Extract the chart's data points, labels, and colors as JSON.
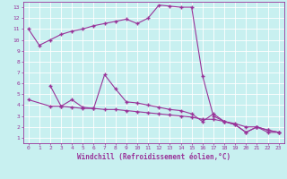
{
  "bg_color": "#c8f0f0",
  "line_color": "#993399",
  "grid_color": "#aadddd",
  "xlabel": "Windchill (Refroidissement éolien,°C)",
  "xlim": [
    -0.5,
    23.5
  ],
  "ylim": [
    0.5,
    13.5
  ],
  "xticks": [
    0,
    1,
    2,
    3,
    4,
    5,
    6,
    7,
    8,
    9,
    10,
    11,
    12,
    13,
    14,
    15,
    16,
    17,
    18,
    19,
    20,
    21,
    22,
    23
  ],
  "yticks": [
    1,
    2,
    3,
    4,
    5,
    6,
    7,
    8,
    9,
    10,
    11,
    12,
    13
  ],
  "line1_x": [
    0,
    1,
    2,
    3,
    4,
    5,
    6,
    7,
    8,
    9,
    10,
    11,
    12,
    13,
    14,
    15,
    16,
    17,
    18,
    19,
    20,
    21,
    22,
    23
  ],
  "line1_y": [
    11.0,
    9.5,
    10.0,
    10.5,
    10.8,
    11.0,
    11.3,
    11.5,
    11.7,
    11.9,
    11.5,
    12.0,
    13.2,
    13.1,
    13.0,
    13.0,
    6.7,
    3.0,
    2.5,
    2.2,
    1.5,
    2.0,
    1.5,
    1.5
  ],
  "line2_x": [
    2,
    3,
    4,
    5,
    6,
    7,
    8,
    9,
    10,
    11,
    12,
    13,
    14,
    15,
    16,
    17,
    18,
    19,
    20,
    21,
    22,
    23
  ],
  "line2_y": [
    5.8,
    3.9,
    4.5,
    3.8,
    3.7,
    6.8,
    5.5,
    4.3,
    4.2,
    4.0,
    3.8,
    3.6,
    3.5,
    3.2,
    2.5,
    3.2,
    2.5,
    2.2,
    1.5,
    2.0,
    1.7,
    1.5
  ],
  "line3_x": [
    0,
    2,
    3,
    4,
    5,
    6,
    7,
    8,
    9,
    10,
    11,
    12,
    13,
    14,
    15,
    16,
    17,
    18,
    19,
    20,
    21,
    22,
    23
  ],
  "line3_y": [
    4.5,
    3.9,
    3.9,
    3.8,
    3.7,
    3.7,
    3.6,
    3.6,
    3.5,
    3.4,
    3.3,
    3.2,
    3.1,
    3.0,
    2.9,
    2.7,
    2.7,
    2.5,
    2.3,
    2.0,
    2.0,
    1.7,
    1.5
  ],
  "marker": "+",
  "markersize": 3,
  "linewidth": 0.8,
  "tick_fontsize": 4.5,
  "label_fontsize": 5.5
}
